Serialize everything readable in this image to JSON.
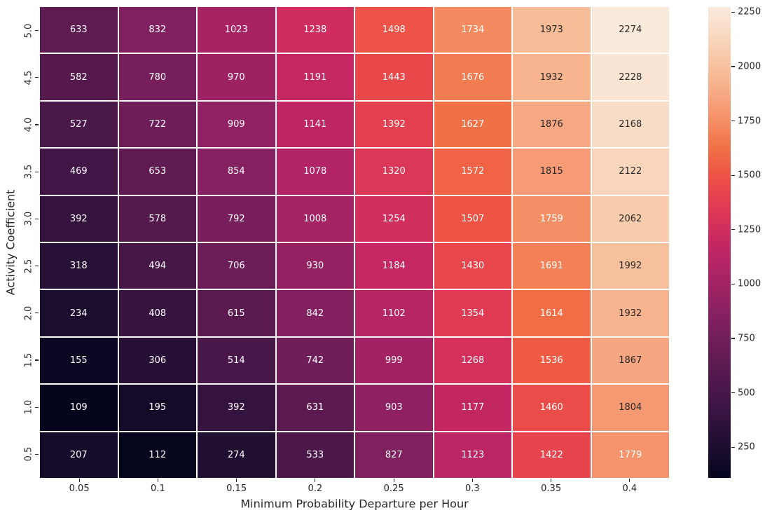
{
  "figure": {
    "background": "#ffffff"
  },
  "chart_data": {
    "type": "heatmap",
    "title": "",
    "xlabel": "Minimum Probability Departure per Hour",
    "ylabel": "Activity Coefficient",
    "x_categories": [
      "0.05",
      "0.1",
      "0.15",
      "0.2",
      "0.25",
      "0.3",
      "0.35",
      "0.4"
    ],
    "y_categories": [
      "5.0",
      "4.5",
      "4.0",
      "3.5",
      "3.0",
      "2.5",
      "2.0",
      "1.5",
      "1.0",
      "0.5"
    ],
    "values": [
      [
        633,
        832,
        1023,
        1238,
        1498,
        1734,
        1973,
        2274
      ],
      [
        582,
        780,
        970,
        1191,
        1443,
        1676,
        1932,
        2228
      ],
      [
        527,
        722,
        909,
        1141,
        1392,
        1627,
        1876,
        2168
      ],
      [
        469,
        653,
        854,
        1078,
        1320,
        1572,
        1815,
        2122
      ],
      [
        392,
        578,
        792,
        1008,
        1254,
        1507,
        1759,
        2062
      ],
      [
        318,
        494,
        706,
        930,
        1184,
        1430,
        1691,
        1992
      ],
      [
        234,
        408,
        615,
        842,
        1102,
        1354,
        1614,
        1932
      ],
      [
        155,
        306,
        514,
        742,
        999,
        1268,
        1536,
        1867
      ],
      [
        109,
        195,
        392,
        631,
        903,
        1177,
        1460,
        1804
      ],
      [
        207,
        112,
        274,
        533,
        827,
        1123,
        1422,
        1779
      ]
    ],
    "vmin": 109,
    "vmax": 2274,
    "annotations": "on",
    "grid": "off",
    "legend_position": "right-colorbar",
    "colorbar_ticks": [
      250,
      500,
      750,
      1000,
      1250,
      1500,
      1750,
      2000,
      2250
    ],
    "colormap": {
      "name": "rocket",
      "stops": [
        [
          0.0,
          "#04051D"
        ],
        [
          0.05,
          "#180C2C"
        ],
        [
          0.1,
          "#291138"
        ],
        [
          0.15,
          "#3B1543"
        ],
        [
          0.2,
          "#4E184B"
        ],
        [
          0.25,
          "#601B52"
        ],
        [
          0.3,
          "#731E5B"
        ],
        [
          0.35,
          "#872162"
        ],
        [
          0.4,
          "#9E2263"
        ],
        [
          0.45,
          "#B32465"
        ],
        [
          0.5,
          "#C52762"
        ],
        [
          0.55,
          "#D93459"
        ],
        [
          0.6,
          "#E6424F"
        ],
        [
          0.65,
          "#EE5644"
        ],
        [
          0.7,
          "#F17046"
        ],
        [
          0.75,
          "#F48A60"
        ],
        [
          0.8,
          "#F6A17C"
        ],
        [
          0.85,
          "#F7B893"
        ],
        [
          0.9,
          "#F8CBAC"
        ],
        [
          0.95,
          "#F9DCC6"
        ],
        [
          1.0,
          "#FAEADC"
        ]
      ]
    },
    "annotation_text_light": "#ffffff",
    "annotation_text_dark": "#262626",
    "tick_text_color": "#262626",
    "grid_line_color": "#ffffff"
  }
}
